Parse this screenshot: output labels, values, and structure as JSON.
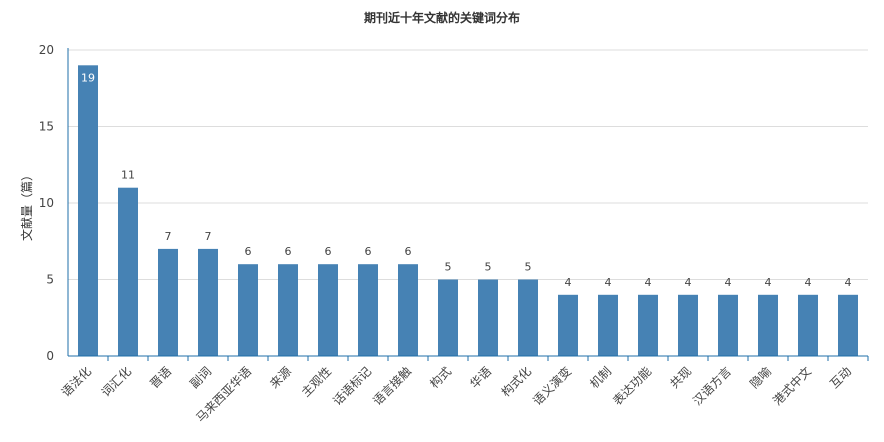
{
  "chart_data": {
    "type": "bar",
    "title": "期刊近十年文献的关键词分布",
    "ylabel": "文献量（篇）",
    "xlabel": "",
    "ylim": [
      0,
      20
    ],
    "yticks": [
      0,
      5,
      10,
      15,
      20
    ],
    "grid": true,
    "categories": [
      "语法化",
      "词汇化",
      "晋语",
      "副词",
      "马来西亚华语",
      "来源",
      "主观性",
      "话语标记",
      "语言接触",
      "构式",
      "华语",
      "构式化",
      "语义演变",
      "机制",
      "表达功能",
      "共现",
      "汉语方言",
      "隐喻",
      "港式中文",
      "互动"
    ],
    "values": [
      19,
      11,
      7,
      7,
      6,
      6,
      6,
      6,
      6,
      5,
      5,
      5,
      4,
      4,
      4,
      4,
      4,
      4,
      4,
      4
    ],
    "colors": {
      "bar": "#4682b4",
      "axis": "#1f6fa8",
      "grid": "#dddddd"
    }
  }
}
